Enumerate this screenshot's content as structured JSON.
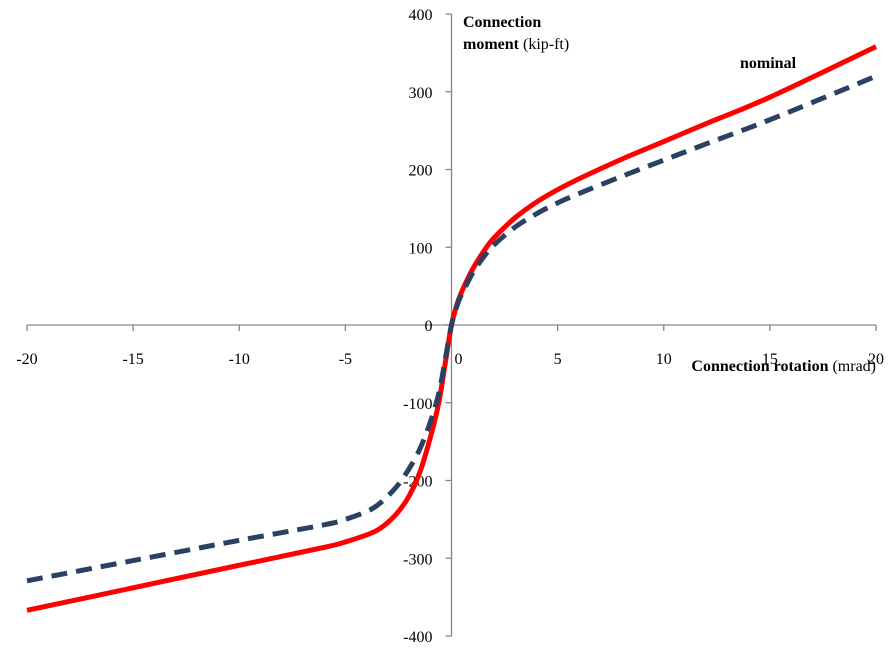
{
  "chart_data": {
    "type": "line",
    "xlabel_bold": "Connection rotation",
    "xlabel_unit": "(mrad)",
    "ylabel_bold_line1": "Connection",
    "ylabel_bold_line2": "moment",
    "ylabel_unit": "(kip-ft)",
    "xlim": [
      -20,
      20
    ],
    "ylim": [
      -400,
      400
    ],
    "x_ticks": [
      -20,
      -15,
      -10,
      -5,
      0,
      5,
      10,
      15,
      20
    ],
    "y_ticks": [
      400,
      300,
      200,
      100,
      0,
      -100,
      -200,
      -300,
      -400
    ],
    "grid": false,
    "series": [
      {
        "name": "nominal",
        "color": "#ff0000",
        "style": "solid",
        "x": [
          -20,
          -15,
          -10,
          -6,
          -5,
          -4,
          -3.5,
          -3,
          -2.5,
          -2,
          -1.5,
          -1,
          -0.6,
          -0.3,
          0,
          0.3,
          0.6,
          1,
          1.5,
          2,
          3,
          4,
          5,
          6,
          8,
          10,
          12,
          15,
          20
        ],
        "y": [
          -367,
          -338,
          -309,
          -286,
          -279,
          -270,
          -264,
          -254,
          -240,
          -220,
          -190,
          -145,
          -100,
          -50,
          0,
          30,
          50,
          72,
          94,
          112,
          138,
          158,
          174,
          188,
          213,
          236,
          259,
          293,
          358
        ]
      },
      {
        "name": "",
        "color": "#2b4163",
        "style": "dashed",
        "x": [
          -20,
          -15,
          -10,
          -6,
          -5,
          -4,
          -3.5,
          -3,
          -2.5,
          -2,
          -1.5,
          -1,
          -0.6,
          -0.3,
          0,
          0.3,
          0.6,
          1,
          1.5,
          2,
          3,
          4,
          5,
          6,
          8,
          10,
          12,
          15,
          20
        ],
        "y": [
          -329,
          -303,
          -277,
          -257,
          -250,
          -240,
          -232,
          -220,
          -205,
          -185,
          -160,
          -125,
          -88,
          -45,
          0,
          28,
          46,
          67,
          87,
          103,
          126,
          143,
          157,
          169,
          191,
          212,
          233,
          264,
          320
        ]
      }
    ]
  }
}
